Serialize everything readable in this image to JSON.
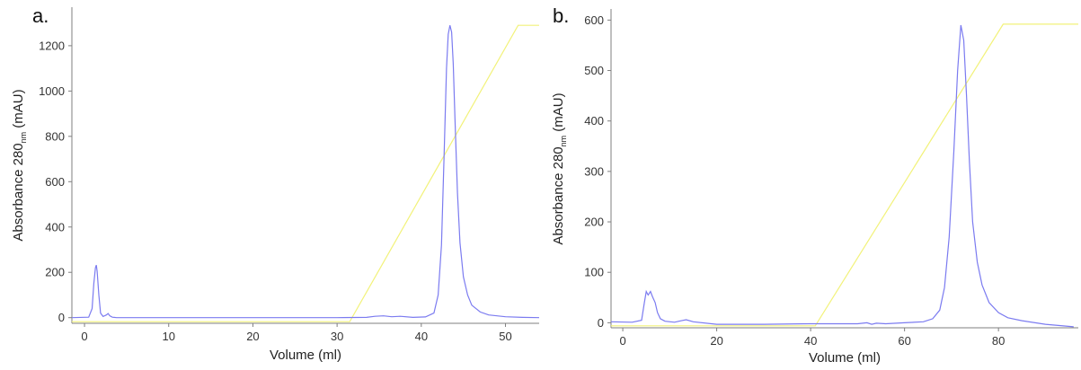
{
  "chart_data": [
    {
      "type": "line",
      "panel_label": "a.",
      "xlabel": "Volume (ml)",
      "ylabel": {
        "main": "Absorbance 280",
        "subscript": "nm",
        "unit": " (mAU)"
      },
      "xlim": [
        -1.5,
        54
      ],
      "ylim": [
        -25,
        1370
      ],
      "xticks": [
        0,
        10,
        20,
        30,
        40,
        50
      ],
      "yticks": [
        0,
        200,
        400,
        600,
        800,
        1000,
        1200
      ],
      "grid": false,
      "colors": {
        "absorbance": "#7b7bf0",
        "gradient": "#f2f27a",
        "axis": "#7f7f7f"
      },
      "series": [
        {
          "key": "absorbance",
          "x": [
            -1.5,
            0.5,
            0.9,
            1.1,
            1.3,
            1.4,
            1.5,
            1.7,
            1.9,
            2.2,
            2.6,
            2.8,
            3.0,
            3.3,
            3.8,
            10,
            20,
            30,
            33.5,
            34.5,
            35.5,
            36.5,
            37.5,
            39,
            40.5,
            41.5,
            42.0,
            42.4,
            42.7,
            43.0,
            43.2,
            43.4,
            43.6,
            43.8,
            44.0,
            44.3,
            44.6,
            45.0,
            45.5,
            46.0,
            47.0,
            48.0,
            50.0,
            52.0,
            54.0
          ],
          "y": [
            0,
            2,
            40,
            150,
            220,
            232,
            205,
            100,
            20,
            5,
            12,
            18,
            8,
            2,
            0,
            0,
            0,
            0,
            1,
            6,
            8,
            4,
            6,
            1,
            3,
            20,
            100,
            320,
            700,
            1100,
            1250,
            1290,
            1260,
            1120,
            880,
            550,
            330,
            180,
            100,
            55,
            25,
            12,
            4,
            1,
            0
          ]
        },
        {
          "key": "gradient",
          "x": [
            -1.5,
            31.5,
            51.5,
            54.0
          ],
          "y": [
            -18,
            -18,
            1290,
            1290
          ]
        }
      ]
    },
    {
      "type": "line",
      "panel_label": "b.",
      "xlabel": "Volume (ml)",
      "ylabel": {
        "main": "Absorbance 280",
        "subscript": "nm",
        "unit": " (mAU)"
      },
      "xlim": [
        -2.5,
        97
      ],
      "ylim": [
        -10,
        622
      ],
      "xticks": [
        0,
        20,
        40,
        60,
        80
      ],
      "yticks": [
        0,
        100,
        200,
        300,
        400,
        500,
        600
      ],
      "grid": false,
      "colors": {
        "absorbance": "#7b7bf0",
        "gradient": "#f2f27a",
        "axis": "#7f7f7f"
      },
      "series": [
        {
          "key": "absorbance",
          "x": [
            -2.5,
            2,
            4,
            4.6,
            5,
            5.4,
            5.9,
            6.4,
            6.9,
            7.4,
            8,
            9,
            11,
            12.5,
            13.5,
            15,
            20,
            30,
            40,
            50,
            52,
            53,
            54,
            56,
            60,
            64,
            66,
            67.5,
            68.5,
            69.5,
            70.5,
            71.3,
            72.0,
            72.6,
            73.2,
            73.8,
            74.5,
            75.5,
            76.5,
            78,
            80,
            82,
            85,
            90,
            96
          ],
          "y": [
            2,
            1,
            5,
            40,
            62,
            55,
            62,
            50,
            40,
            20,
            8,
            3,
            1,
            4,
            6,
            2,
            -3,
            -3,
            -2,
            -2,
            0,
            -3,
            -1,
            -2,
            0,
            2,
            8,
            25,
            70,
            170,
            340,
            500,
            590,
            560,
            450,
            320,
            200,
            120,
            75,
            40,
            20,
            10,
            4,
            -3,
            -8
          ]
        },
        {
          "key": "gradient",
          "x": [
            -2.5,
            41.0,
            81.0,
            97.0
          ],
          "y": [
            -6,
            -6,
            592,
            592
          ]
        }
      ]
    }
  ]
}
